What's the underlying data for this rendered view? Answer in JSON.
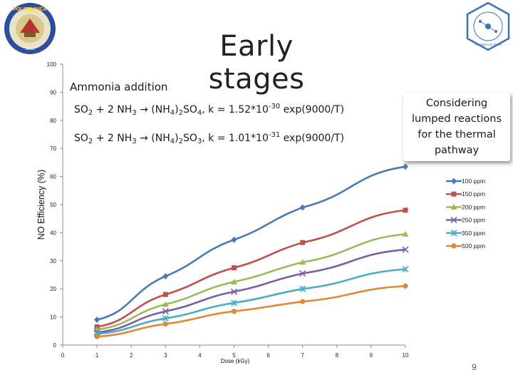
{
  "slide": {
    "title": "Early stages",
    "page_number": "9"
  },
  "logos": {
    "left_text_top": "POLITEHNICA",
    "left_text_year": "1818",
    "right_text": "Facultatea de Fizica"
  },
  "annotations": {
    "title": "Ammonia addition",
    "reaction1": {
      "prefix": "SO",
      "s1": "2",
      "mid1": " + 2 NH",
      "s2": "3",
      "mid2": " → (NH",
      "s3": "4",
      "mid3": ")",
      "s4": "2",
      "mid4": "SO",
      "s5": "4",
      "mid5": ", k = 1.52*10",
      "exp": "-30",
      "tail": " exp(9000/T)"
    },
    "reaction2": {
      "prefix": "SO",
      "s1": "2",
      "mid1": " + 2 NH",
      "s2": "3",
      "mid2": " → (NH",
      "s3": "4",
      "mid3": ")",
      "s4": "2",
      "mid4": "SO",
      "s5": "3",
      "mid5": ", k = 1.01*10",
      "exp": "-31",
      "tail": " exp(9000/T)"
    },
    "callout_lines": [
      "Considering",
      "lumped reactions",
      "for the thermal",
      "pathway"
    ]
  },
  "chart_data": {
    "type": "line",
    "title": "",
    "xlabel": "Dose (kGy)",
    "ylabel": "NO Efficiency (%)",
    "xlim": [
      0,
      10
    ],
    "ylim": [
      0,
      100
    ],
    "x_ticks": [
      0,
      1,
      2,
      3,
      4,
      5,
      6,
      7,
      8,
      9,
      10
    ],
    "y_ticks": [
      0,
      10,
      20,
      30,
      40,
      50,
      60,
      70,
      80,
      90,
      100
    ],
    "x": [
      1,
      3,
      5,
      7,
      10
    ],
    "series": [
      {
        "name": "100 ppm",
        "color": "#4a7ab5",
        "marker": "diamond",
        "values": [
          9,
          24.5,
          37.5,
          49,
          63.5
        ]
      },
      {
        "name": "150 ppm",
        "color": "#c0504d",
        "marker": "square",
        "values": [
          6.5,
          18,
          27.5,
          36.5,
          48
        ]
      },
      {
        "name": "200 ppm",
        "color": "#9bbb59",
        "marker": "triangle",
        "values": [
          5.5,
          14.5,
          22.5,
          29.5,
          39.5
        ]
      },
      {
        "name": "250 ppm",
        "color": "#7b5ea7",
        "marker": "cross",
        "values": [
          4.5,
          12,
          19,
          25.5,
          34
        ]
      },
      {
        "name": "350 ppm",
        "color": "#4bacc6",
        "marker": "xstar",
        "values": [
          4,
          9.5,
          15,
          20,
          27
        ]
      },
      {
        "name": "500 ppm",
        "color": "#e0883a",
        "marker": "circle",
        "values": [
          3,
          7.5,
          12,
          15.5,
          21
        ]
      }
    ],
    "legend_position": "right"
  }
}
